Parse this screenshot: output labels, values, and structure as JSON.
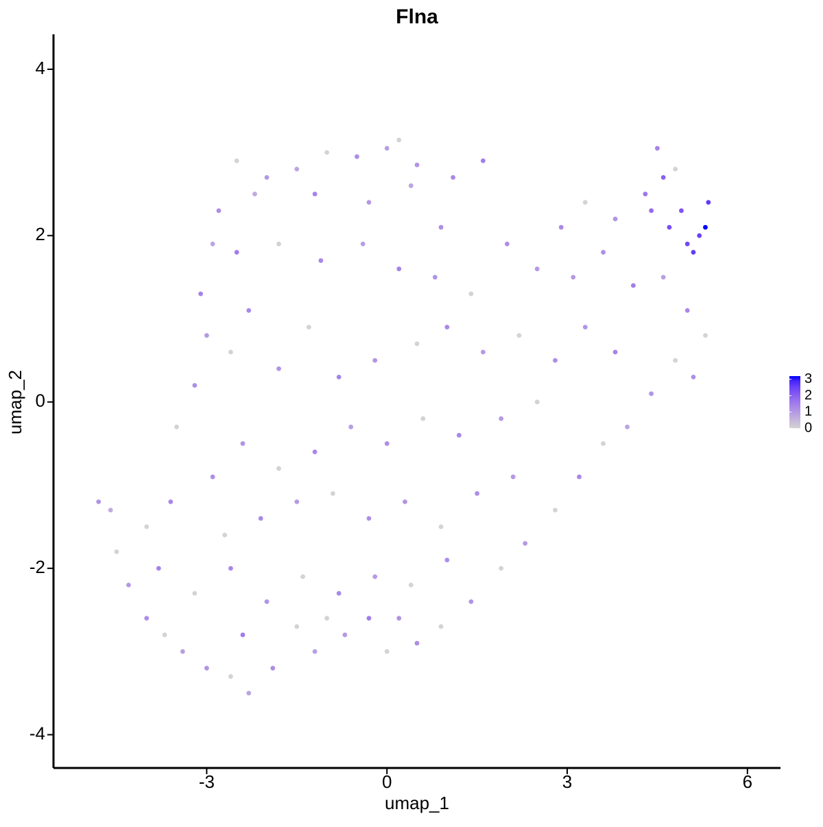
{
  "chart_data": {
    "type": "scatter",
    "title": "Flna",
    "x_label": "umap_1",
    "y_label": "umap_2",
    "xlim": [
      -5.55,
      6.55
    ],
    "ylim": [
      -4.4,
      4.42
    ],
    "xticks": [
      -3,
      0,
      3,
      6
    ],
    "yticks": [
      -4,
      -2,
      0,
      2,
      4
    ],
    "color_low": "#d3d3d3",
    "color_high": "#0000ff",
    "color_lim": [
      0,
      3.2
    ],
    "color_ticks": [
      0,
      1,
      2,
      3
    ],
    "x": [
      -2.5,
      -2,
      -1.5,
      -1,
      -0.5,
      0,
      0.2,
      0.5,
      1.1,
      1.6,
      -2.8,
      -2.2,
      -1.2,
      -0.3,
      0.4,
      0.9,
      -2.9,
      -2.5,
      -1.8,
      -1.1,
      -0.4,
      0.2,
      0.8,
      1.4,
      2.0,
      2.5,
      2.9,
      3.3,
      3.8,
      4.3,
      4.5,
      4.6,
      4.9,
      5.0,
      5.3,
      5.35,
      5.2,
      4.8,
      4.4,
      4.7,
      5.1,
      3.6,
      3.1,
      4.1,
      4.6,
      5.0,
      5.3,
      5.1,
      4.8,
      4.4,
      4.0,
      3.6,
      3.2,
      2.8,
      2.3,
      1.9,
      1.4,
      0.9,
      0.5,
      0,
      -0.3,
      -0.7,
      -1.2,
      -1.5,
      -1.9,
      -2.3,
      -2.6,
      -3.0,
      -3.4,
      -3.7,
      -4.0,
      -4.3,
      -4.5,
      -4.8,
      -4.6,
      -4.0,
      -3.6,
      -3.5,
      -3.2,
      -3.0,
      -3.1,
      -2.6,
      -2.3,
      -1.8,
      -1.3,
      -0.8,
      -0.2,
      0.5,
      1.0,
      1.6,
      2.2,
      2.8,
      3.3,
      3.8,
      2.5,
      1.9,
      1.2,
      0.6,
      0.0,
      -0.6,
      -1.2,
      -1.8,
      -2.4,
      -2.9,
      -2.7,
      -2.1,
      -1.5,
      -0.9,
      -0.3,
      0.3,
      0.9,
      1.5,
      2.1,
      -3.8,
      -3.2,
      -2.6,
      -2.0,
      -1.4,
      -0.8,
      -0.2,
      0.4,
      1.0,
      -2.4,
      -1.0,
      0.2
    ],
    "y": [
      2.9,
      2.7,
      2.8,
      3.0,
      2.95,
      3.05,
      3.15,
      2.85,
      2.7,
      2.9,
      2.3,
      2.5,
      2.5,
      2.4,
      2.6,
      2.1,
      1.9,
      1.8,
      1.9,
      1.7,
      1.9,
      1.6,
      1.5,
      1.3,
      1.9,
      1.6,
      2.1,
      2.4,
      2.2,
      2.5,
      3.05,
      2.7,
      2.3,
      1.9,
      2.1,
      2.4,
      2.0,
      2.8,
      2.3,
      2.1,
      1.8,
      1.8,
      1.5,
      1.4,
      1.5,
      1.1,
      0.8,
      0.3,
      0.5,
      0.1,
      -0.3,
      -0.5,
      -0.9,
      -1.3,
      -1.7,
      -2.0,
      -2.4,
      -2.7,
      -2.9,
      -3.0,
      -2.6,
      -2.8,
      -3.0,
      -2.7,
      -3.2,
      -3.5,
      -3.3,
      -3.2,
      -3.0,
      -2.8,
      -2.6,
      -2.2,
      -1.8,
      -1.2,
      -1.3,
      -1.5,
      -1.2,
      -0.3,
      0.2,
      0.8,
      1.3,
      0.6,
      1.1,
      0.4,
      0.9,
      0.3,
      0.5,
      0.7,
      0.9,
      0.6,
      0.8,
      0.5,
      0.9,
      0.6,
      0.0,
      -0.2,
      -0.4,
      -0.2,
      -0.5,
      -0.3,
      -0.6,
      -0.8,
      -0.5,
      -0.9,
      -1.6,
      -1.4,
      -1.2,
      -1.1,
      -1.4,
      -1.2,
      -1.5,
      -1.1,
      -0.9,
      -2.0,
      -2.3,
      -2.0,
      -2.4,
      -2.1,
      -2.3,
      -2.1,
      -2.2,
      -1.9,
      -2.8,
      -2.6,
      -2.6
    ],
    "values": [
      0,
      1,
      0.8,
      0,
      1.2,
      0.9,
      0,
      1.1,
      1.3,
      1.5,
      1.2,
      0.7,
      1.4,
      1,
      0.8,
      1.2,
      0.8,
      1.5,
      0,
      1.3,
      0.9,
      1.4,
      1.1,
      0,
      1.2,
      1.0,
      1.3,
      0,
      1.1,
      1.6,
      1.4,
      2.0,
      2.2,
      2.4,
      3.2,
      2.6,
      2.5,
      0,
      1.8,
      2.3,
      2.6,
      1.2,
      1.0,
      1.5,
      0.9,
      1.3,
      0,
      1.2,
      0,
      1.1,
      0.8,
      0,
      1.3,
      0,
      1,
      0,
      1.1,
      0,
      1.2,
      0,
      1.5,
      1.0,
      0.9,
      0,
      1.2,
      0.8,
      0,
      1.1,
      0.9,
      0,
      1.2,
      1,
      0,
      1.1,
      0.7,
      0,
      1.3,
      0,
      1.2,
      1.0,
      1.4,
      0,
      1.3,
      1.1,
      0,
      1.4,
      1.1,
      0,
      1.3,
      1.0,
      0,
      1.2,
      1.1,
      1.4,
      0,
      1.0,
      1.3,
      0,
      1.2,
      0.9,
      1.3,
      0,
      1.1,
      1.2,
      0,
      1.3,
      1.0,
      0,
      1.2,
      1.1,
      0,
      1.2,
      1.0,
      1.4,
      0,
      1.3,
      1.1,
      0,
      1.3,
      1.0,
      0,
      1.2,
      1.5,
      0,
      1.1
    ]
  }
}
